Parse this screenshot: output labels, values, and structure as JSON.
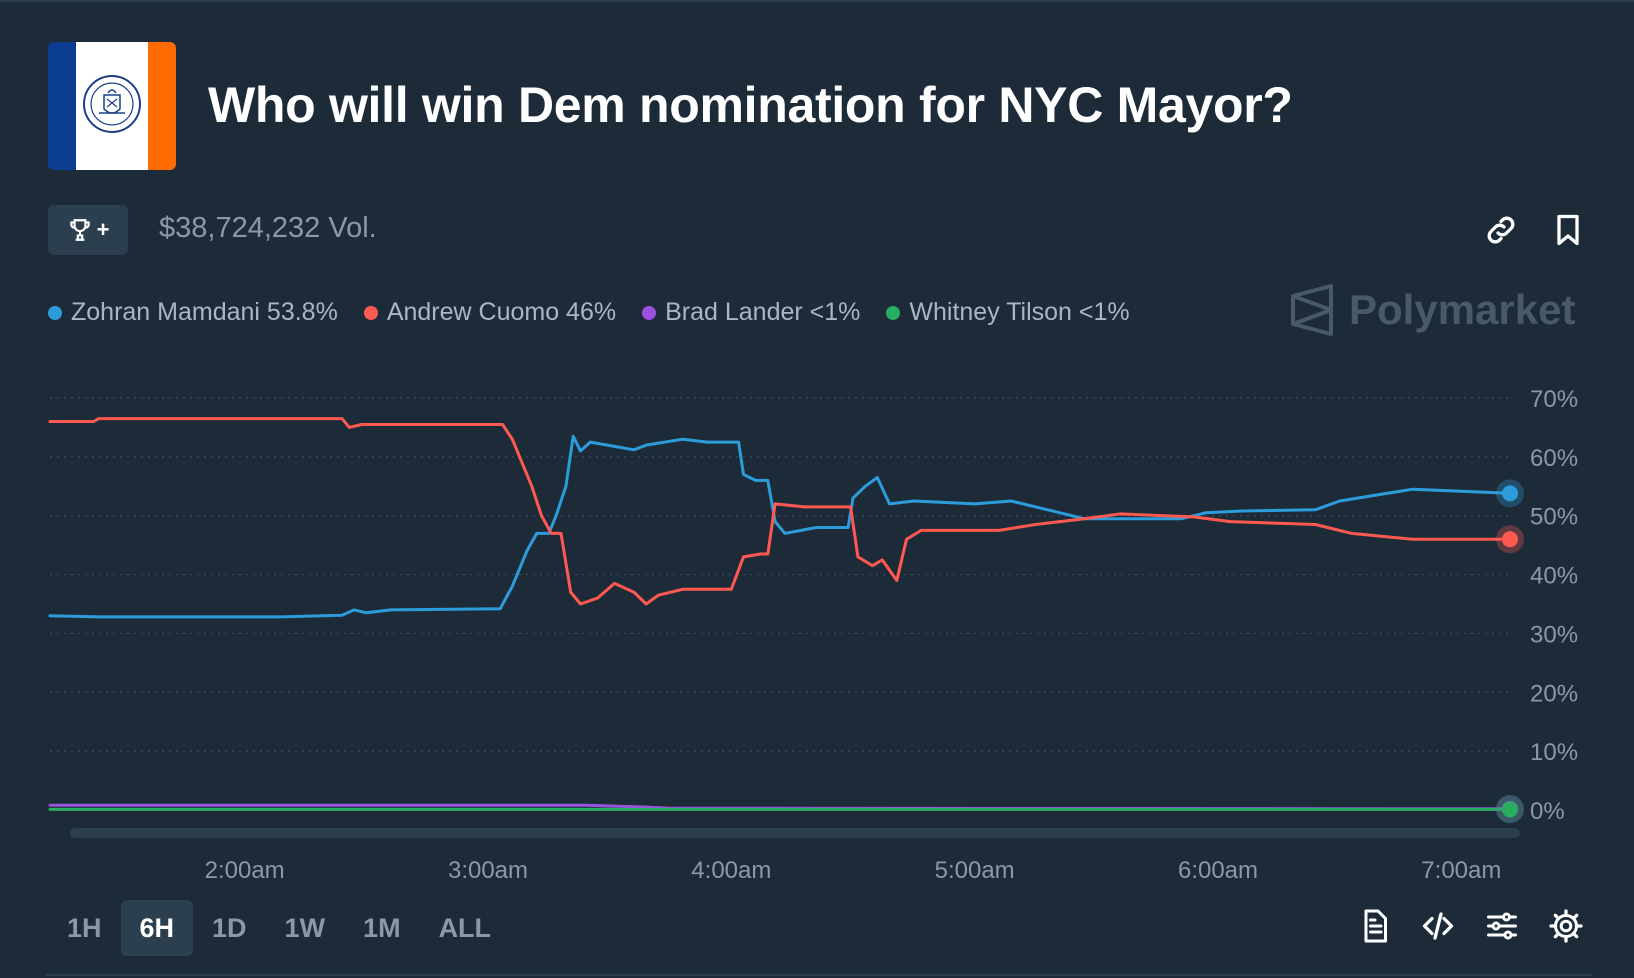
{
  "header": {
    "title": "Who will win Dem nomination for NYC Mayor?",
    "volume": "$38,724,232 Vol.",
    "trophy_label": "+"
  },
  "brand": {
    "name": "Polymarket"
  },
  "legend": [
    {
      "label": "Zohran Mamdani 53.8%",
      "color": "#2d9cdb"
    },
    {
      "label": "Andrew Cuomo 46%",
      "color": "#ff5952"
    },
    {
      "label": "Brad Lander <1%",
      "color": "#9b51e0"
    },
    {
      "label": "Whitney Tilson <1%",
      "color": "#27ae60"
    }
  ],
  "timeframes": [
    {
      "label": "1H",
      "active": false
    },
    {
      "label": "6H",
      "active": true
    },
    {
      "label": "1D",
      "active": false
    },
    {
      "label": "1W",
      "active": false
    },
    {
      "label": "1M",
      "active": false
    },
    {
      "label": "ALL",
      "active": false
    }
  ],
  "icons": [
    "trophy-icon",
    "link-icon",
    "bookmark-icon",
    "document-icon",
    "code-icon",
    "sliders-icon",
    "gear-icon"
  ],
  "chart_data": {
    "type": "line",
    "x_domain": [
      1.2,
      7.2
    ],
    "ylim": [
      0,
      70
    ],
    "y_ticks": [
      0,
      10,
      20,
      30,
      40,
      50,
      60,
      70
    ],
    "y_tick_labels": [
      "0%",
      "10%",
      "20%",
      "30%",
      "40%",
      "50%",
      "60%",
      "70%"
    ],
    "x_ticks": [
      2,
      3,
      4,
      5,
      6,
      7
    ],
    "x_tick_labels": [
      "2:00am",
      "3:00am",
      "4:00am",
      "5:00am",
      "6:00am",
      "7:00am"
    ],
    "grid": true,
    "series": [
      {
        "name": "Zohran Mamdani",
        "color": "#2d9cdb",
        "points": [
          [
            1.2,
            33
          ],
          [
            1.4,
            32.8
          ],
          [
            2.15,
            32.8
          ],
          [
            2.4,
            33.1
          ],
          [
            2.45,
            34
          ],
          [
            2.5,
            33.5
          ],
          [
            2.6,
            34
          ],
          [
            3.05,
            34.2
          ],
          [
            3.1,
            38
          ],
          [
            3.16,
            44
          ],
          [
            3.2,
            47
          ],
          [
            3.25,
            47
          ],
          [
            3.28,
            50
          ],
          [
            3.32,
            55
          ],
          [
            3.35,
            63.5
          ],
          [
            3.38,
            61
          ],
          [
            3.42,
            62.5
          ],
          [
            3.6,
            61.2
          ],
          [
            3.65,
            62
          ],
          [
            3.8,
            63
          ],
          [
            3.9,
            62.5
          ],
          [
            4.03,
            62.5
          ],
          [
            4.05,
            57
          ],
          [
            4.1,
            56
          ],
          [
            4.15,
            56
          ],
          [
            4.18,
            49
          ],
          [
            4.22,
            47
          ],
          [
            4.35,
            48
          ],
          [
            4.48,
            48
          ],
          [
            4.5,
            53
          ],
          [
            4.55,
            55
          ],
          [
            4.6,
            56.5
          ],
          [
            4.65,
            52
          ],
          [
            4.75,
            52.5
          ],
          [
            5.0,
            52
          ],
          [
            5.15,
            52.5
          ],
          [
            5.3,
            51
          ],
          [
            5.45,
            49.5
          ],
          [
            5.6,
            49.5
          ],
          [
            5.85,
            49.5
          ],
          [
            5.95,
            50.5
          ],
          [
            6.1,
            50.8
          ],
          [
            6.4,
            51
          ],
          [
            6.5,
            52.5
          ],
          [
            6.8,
            54.5
          ],
          [
            7.2,
            53.8
          ]
        ]
      },
      {
        "name": "Andrew Cuomo",
        "color": "#ff5952",
        "points": [
          [
            1.2,
            66
          ],
          [
            1.38,
            66
          ],
          [
            1.4,
            66.5
          ],
          [
            2.4,
            66.5
          ],
          [
            2.43,
            65
          ],
          [
            2.48,
            65.5
          ],
          [
            3.06,
            65.5
          ],
          [
            3.1,
            63
          ],
          [
            3.18,
            55
          ],
          [
            3.22,
            50
          ],
          [
            3.26,
            47
          ],
          [
            3.3,
            47
          ],
          [
            3.34,
            37
          ],
          [
            3.38,
            35
          ],
          [
            3.45,
            36
          ],
          [
            3.52,
            38.5
          ],
          [
            3.6,
            37
          ],
          [
            3.65,
            35
          ],
          [
            3.7,
            36.5
          ],
          [
            3.8,
            37.5
          ],
          [
            4.0,
            37.5
          ],
          [
            4.05,
            43
          ],
          [
            4.12,
            43.5
          ],
          [
            4.15,
            43.5
          ],
          [
            4.18,
            52
          ],
          [
            4.3,
            51.5
          ],
          [
            4.49,
            51.5
          ],
          [
            4.52,
            43
          ],
          [
            4.58,
            41.5
          ],
          [
            4.62,
            42.5
          ],
          [
            4.68,
            39
          ],
          [
            4.72,
            46
          ],
          [
            4.78,
            47.5
          ],
          [
            5.1,
            47.5
          ],
          [
            5.25,
            48.5
          ],
          [
            5.45,
            49.5
          ],
          [
            5.6,
            50.3
          ],
          [
            5.9,
            49.8
          ],
          [
            6.05,
            49
          ],
          [
            6.4,
            48.5
          ],
          [
            6.55,
            47
          ],
          [
            6.8,
            46
          ],
          [
            7.2,
            46
          ]
        ]
      },
      {
        "name": "Brad Lander",
        "color": "#9b51e0",
        "points": [
          [
            1.2,
            0.8
          ],
          [
            2.0,
            0.8
          ],
          [
            3.4,
            0.8
          ],
          [
            3.65,
            0.5
          ],
          [
            3.75,
            0.3
          ],
          [
            7.2,
            0.2
          ]
        ]
      },
      {
        "name": "Whitney Tilson",
        "color": "#27ae60",
        "points": [
          [
            1.2,
            0.1
          ],
          [
            7.2,
            0.1
          ]
        ]
      }
    ]
  }
}
